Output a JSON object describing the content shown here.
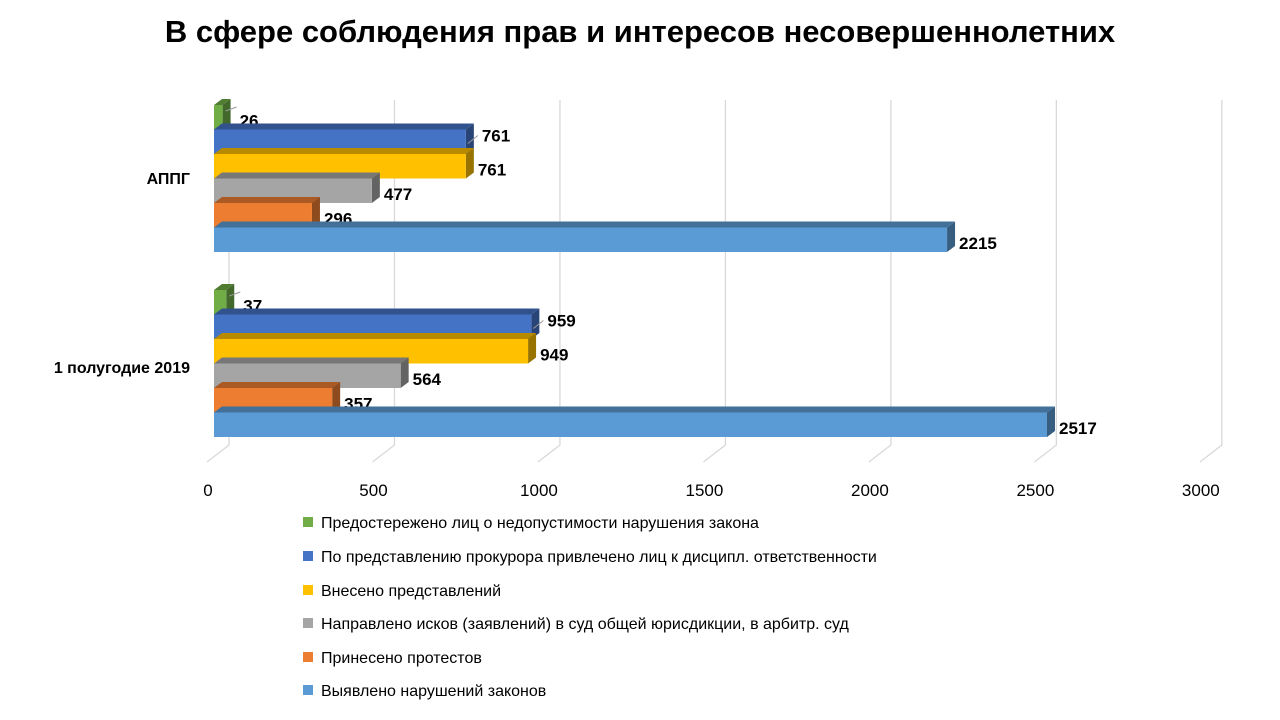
{
  "chart_data": {
    "type": "bar",
    "orientation": "horizontal",
    "style": "3d",
    "title": "В сфере соблюдения прав и интересов несовершеннолетних",
    "categories": [
      "АППГ",
      "1 полугодие 2019"
    ],
    "xlim": [
      0,
      3000
    ],
    "xticks": [
      0,
      500,
      1000,
      1500,
      2000,
      2500,
      3000
    ],
    "grid": true,
    "legend_position": "bottom",
    "series": [
      {
        "name": "Предостережено лиц о недопустимости нарушения  закона",
        "color": "#70ad47",
        "values": [
          26,
          37
        ]
      },
      {
        "name": "По представлению прокурора привлечено лиц к дисципл. ответственности",
        "color": "#4472c4",
        "values": [
          761,
          959
        ]
      },
      {
        "name": "Внесено представлений",
        "color": "#ffc000",
        "values": [
          761,
          949
        ]
      },
      {
        "name": "Направлено исков (заявлений) в суд общей юрисдикции, в арбитр. суд",
        "color": "#a5a5a5",
        "values": [
          477,
          564
        ]
      },
      {
        "name": "Принесено протестов",
        "color": "#ed7d31",
        "values": [
          296,
          357
        ]
      },
      {
        "name": "Выявлено нарушений законов",
        "color": "#5b9bd5",
        "values": [
          2215,
          2517
        ]
      }
    ]
  }
}
